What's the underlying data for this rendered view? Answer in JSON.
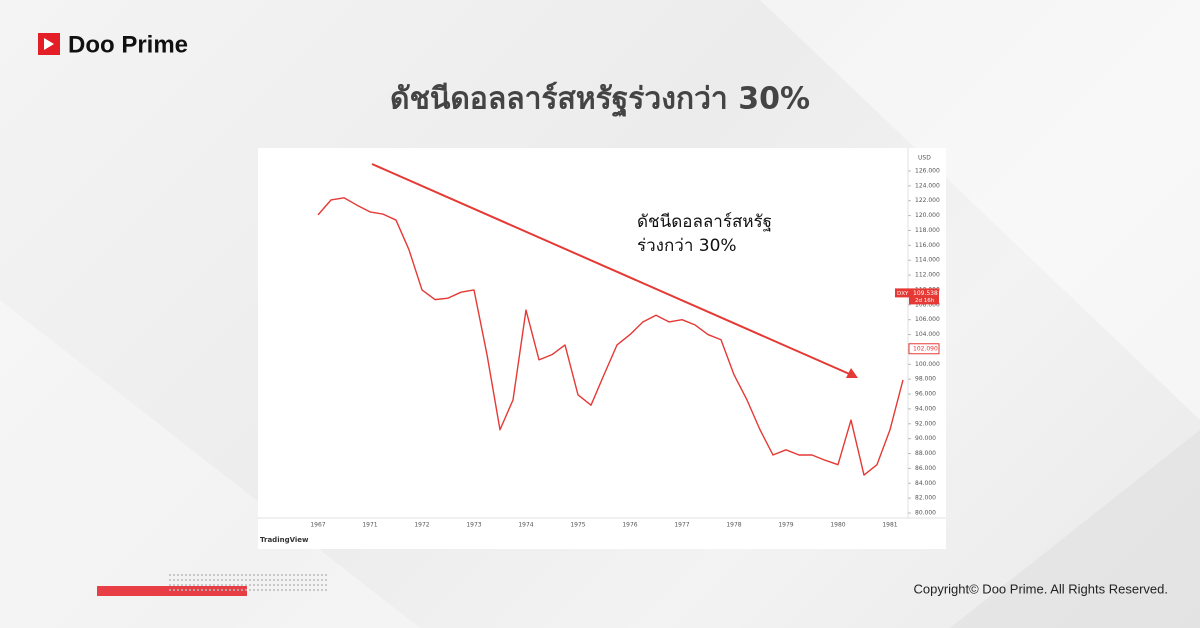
{
  "header": {
    "logo": "Doo Prime",
    "title": "ดัชนีดอลลาร์สหรัฐร่วงกว่า 30%"
  },
  "chart_data": {
    "type": "line",
    "annotation": [
      "ดัชนีดอลลาร์สหรัฐ",
      "ร่วงกว่า 30%"
    ],
    "y_unit": "USD",
    "symbol": "DXY",
    "countdown": "2d 16h",
    "price_labels": [
      {
        "value": 109.538,
        "label": "109.538"
      },
      {
        "value": 102.09,
        "label": "102.090"
      }
    ],
    "watermark": "TradingView",
    "color": "#e53935",
    "categories": [
      "1967",
      null,
      null,
      null,
      "1971",
      null,
      null,
      null,
      "1972",
      null,
      null,
      null,
      "1973",
      null,
      null,
      null,
      "1974",
      null,
      null,
      null,
      "1975",
      null,
      null,
      null,
      "1976",
      null,
      null,
      null,
      "1977",
      null,
      null,
      null,
      "1978",
      null,
      null,
      null,
      "1979",
      null,
      null,
      null,
      "1980",
      null,
      null,
      null,
      "1981",
      null
    ],
    "values": [
      120.1,
      122.1,
      122.4,
      121.4,
      120.5,
      120.2,
      119.4,
      115.4,
      110.0,
      108.7,
      108.9,
      109.7,
      110.0,
      101.3,
      91.2,
      95.2,
      107.3,
      100.6,
      101.3,
      102.6,
      95.9,
      94.5,
      98.6,
      102.6,
      104.0,
      105.7,
      106.6,
      105.7,
      106.0,
      105.3,
      104.0,
      103.3,
      98.6,
      95.2,
      91.2,
      87.8,
      88.5,
      87.8,
      87.8,
      87.1,
      86.5,
      92.5,
      85.1,
      86.5,
      91.2,
      97.9
    ],
    "ylim": [
      80,
      126
    ],
    "yticks": [
      {
        "value": 80,
        "label": "80.000"
      },
      {
        "value": 82,
        "label": "82.000"
      },
      {
        "value": 84,
        "label": "84.000"
      },
      {
        "value": 86,
        "label": "86.000"
      },
      {
        "value": 88,
        "label": "88.000"
      },
      {
        "value": 90,
        "label": "90.000"
      },
      {
        "value": 92,
        "label": "92.000"
      },
      {
        "value": 94,
        "label": "94.000"
      },
      {
        "value": 96,
        "label": "96.000"
      },
      {
        "value": 98,
        "label": "98.000"
      },
      {
        "value": 100,
        "label": "100.000"
      },
      {
        "value": 102,
        "label": "102.000"
      },
      {
        "value": 104,
        "label": "104.000"
      },
      {
        "value": 106,
        "label": "106.000"
      },
      {
        "value": 108,
        "label": "108.000"
      },
      {
        "value": 110,
        "label": "110.000"
      },
      {
        "value": 112,
        "label": "112.000"
      },
      {
        "value": 114,
        "label": "114.000"
      },
      {
        "value": 116,
        "label": "116.000"
      },
      {
        "value": 118,
        "label": "118.000"
      },
      {
        "value": 120,
        "label": "120.000"
      },
      {
        "value": 122,
        "label": "122.000"
      },
      {
        "value": 124,
        "label": "124.000"
      },
      {
        "value": 126,
        "label": "126.000"
      }
    ]
  },
  "footer": {
    "copyright": "Copyright© Doo Prime. All Rights Reserved."
  }
}
